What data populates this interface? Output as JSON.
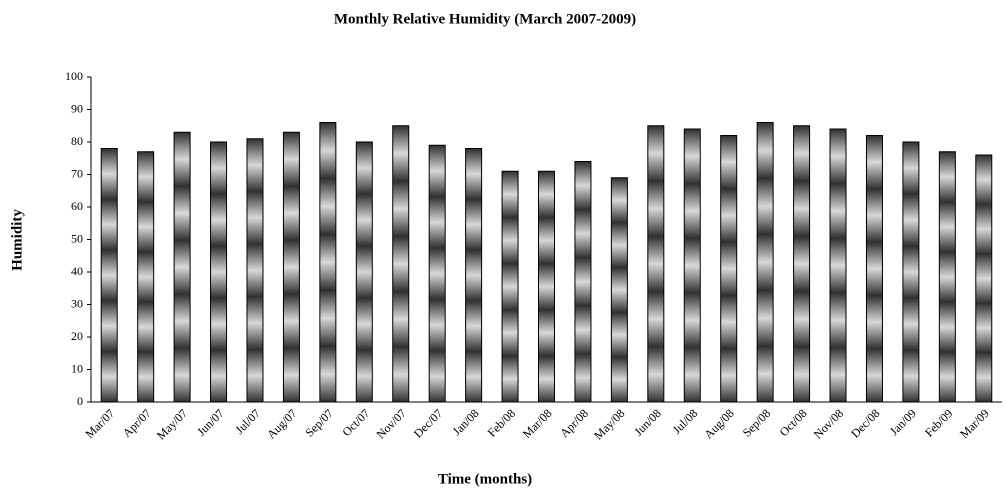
{
  "chart_data": {
    "type": "bar",
    "title": "Monthly Relative Humidity (March 2007-2009)",
    "x_label": "Time (months)",
    "y_label": "Humidity",
    "categories": [
      "Mar/07",
      "Apr/07",
      "May/07",
      "Jun/07",
      "Jul/07",
      "Aug/07",
      "Sep/07",
      "Oct/07",
      "Nov/07",
      "Dec/07",
      "Jan/08",
      "Feb/08",
      "Mar/08",
      "Apr/08",
      "May/08",
      "Jun/08",
      "Jul/08",
      "Aug/08",
      "Sep/08",
      "Oct/08",
      "Nov/08",
      "Dec/08",
      "Jan/09",
      "Feb/09",
      "Mar/09"
    ],
    "values": [
      78,
      77,
      83,
      80,
      81,
      83,
      86,
      80,
      85,
      79,
      78,
      71,
      71,
      74,
      69,
      85,
      84,
      82,
      86,
      85,
      84,
      82,
      80,
      77,
      76
    ],
    "color": "#303030",
    "ylim": [
      0,
      100
    ],
    "yticks": [
      0,
      10,
      20,
      30,
      40,
      50,
      60,
      70,
      80,
      90,
      100
    ],
    "grid": false
  }
}
